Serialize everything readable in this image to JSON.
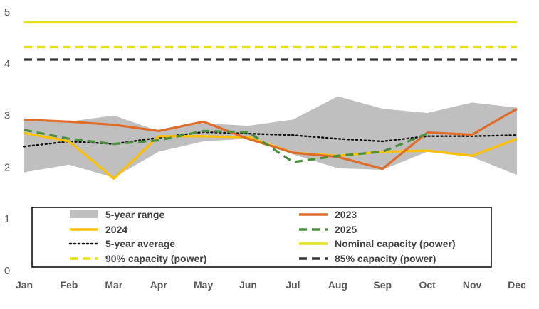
{
  "chart_data": {
    "type": "line",
    "title": "",
    "xlabel": "",
    "ylabel": "",
    "ylim": [
      0,
      5
    ],
    "yticks": [
      "0",
      "1",
      "2",
      "3",
      "4",
      "5"
    ],
    "grid": false,
    "legend_position": "bottom (inside plot, boxed)",
    "categories": [
      "Jan",
      "Feb",
      "Mar",
      "Apr",
      "May",
      "Jun",
      "Jul",
      "Aug",
      "Sep",
      "Oct",
      "Nov",
      "Dec"
    ],
    "range": {
      "name": "5-year range",
      "color": "#bfbfbf",
      "low": [
        1.9,
        2.05,
        1.8,
        2.3,
        2.5,
        2.55,
        2.25,
        1.98,
        1.95,
        2.3,
        2.2,
        1.85
      ],
      "high": [
        2.9,
        2.88,
        3.0,
        2.7,
        2.85,
        2.8,
        2.92,
        3.37,
        3.13,
        3.05,
        3.25,
        3.15
      ]
    },
    "series": [
      {
        "name": "2023",
        "color": "#e06c2a",
        "dash": "solid",
        "values": [
          2.92,
          2.88,
          2.82,
          2.7,
          2.88,
          2.55,
          2.28,
          2.2,
          1.97,
          2.67,
          2.63,
          3.13
        ]
      },
      {
        "name": "2024",
        "color": "#ffc000",
        "dash": "solid",
        "values": [
          2.66,
          2.5,
          1.78,
          2.6,
          2.6,
          2.58,
          2.28,
          2.22,
          2.3,
          2.32,
          2.22,
          2.55
        ]
      },
      {
        "name": "2025",
        "color": "#4a8f3c",
        "dash": "dashed",
        "values": [
          2.72,
          2.55,
          2.45,
          2.52,
          2.7,
          2.68,
          2.1,
          2.22,
          2.3,
          2.65,
          null,
          null
        ]
      },
      {
        "name": "5-year average",
        "color": "#111111",
        "dash": "dotted",
        "values": [
          2.4,
          2.5,
          2.45,
          2.57,
          2.68,
          2.65,
          2.62,
          2.55,
          2.5,
          2.6,
          2.6,
          2.62
        ]
      },
      {
        "name": "Nominal capacity (power)",
        "color": "#e6e017",
        "dash": "solid",
        "values": [
          4.8,
          4.8,
          4.8,
          4.8,
          4.8,
          4.8,
          4.8,
          4.8,
          4.8,
          4.8,
          4.8,
          4.8
        ]
      },
      {
        "name": "90% capacity (power)",
        "color": "#e6e017",
        "dash": "dashed",
        "values": [
          4.32,
          4.32,
          4.32,
          4.32,
          4.32,
          4.32,
          4.32,
          4.32,
          4.32,
          4.32,
          4.32,
          4.32
        ]
      },
      {
        "name": "85% capacity (power)",
        "color": "#333333",
        "dash": "dashed",
        "values": [
          4.08,
          4.08,
          4.08,
          4.08,
          4.08,
          4.08,
          4.08,
          4.08,
          4.08,
          4.08,
          4.08,
          4.08
        ]
      }
    ],
    "legend": [
      {
        "label": "5-year range",
        "ref": "range"
      },
      {
        "label": "2023",
        "ref": "2023"
      },
      {
        "label": "2024",
        "ref": "2024"
      },
      {
        "label": "2025",
        "ref": "2025"
      },
      {
        "label": "5-year average",
        "ref": "5-year average"
      },
      {
        "label": "Nominal capacity (power)",
        "ref": "Nominal capacity (power)"
      },
      {
        "label": "90% capacity (power)",
        "ref": "90% capacity (power)"
      },
      {
        "label": "85% capacity (power)",
        "ref": "85% capacity (power)"
      }
    ]
  }
}
